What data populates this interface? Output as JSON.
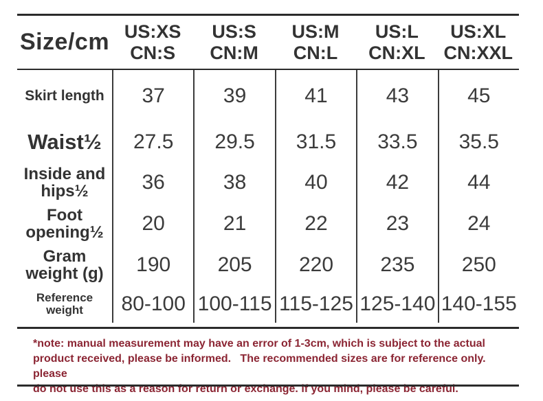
{
  "colors": {
    "text_dark": "#333333",
    "value_gray": "#3b3b3b",
    "note_maroon": "#8b2533",
    "rule_dark": "#2b2b2b"
  },
  "chart_data": {
    "type": "table",
    "title": "Size/cm",
    "corner_label": "Size/cm",
    "columns": [
      {
        "us": "US:XS",
        "cn": "CN:S"
      },
      {
        "us": "US:S",
        "cn": "CN:M"
      },
      {
        "us": "US:M",
        "cn": "CN:L"
      },
      {
        "us": "US:L",
        "cn": "CN:XL"
      },
      {
        "us": "US:XL",
        "cn": "CN:XXL"
      }
    ],
    "rows": [
      {
        "label": "Skirt length",
        "values": [
          "37",
          "39",
          "41",
          "43",
          "45"
        ]
      },
      {
        "label": "Waist½",
        "values": [
          "27.5",
          "29.5",
          "31.5",
          "33.5",
          "35.5"
        ]
      },
      {
        "label": "Inside and\nhips½",
        "values": [
          "36",
          "38",
          "40",
          "42",
          "44"
        ]
      },
      {
        "label": "Foot\nopening½",
        "values": [
          "20",
          "21",
          "22",
          "23",
          "24"
        ]
      },
      {
        "label": "Gram\nweight (g)",
        "values": [
          "190",
          "205",
          "220",
          "235",
          "250"
        ]
      },
      {
        "label": "Reference weight",
        "values": [
          "80-100",
          "100-115",
          "115-125",
          "125-140",
          "140-155"
        ]
      }
    ],
    "note_lines": [
      "*note: manual measurement may have an error of 1-3cm, which is subject to the actual",
      "product received, please be informed.   The recommended sizes are for reference only. please",
      "do not use this as a reason for return or exchange. if you mind, please be careful."
    ]
  }
}
